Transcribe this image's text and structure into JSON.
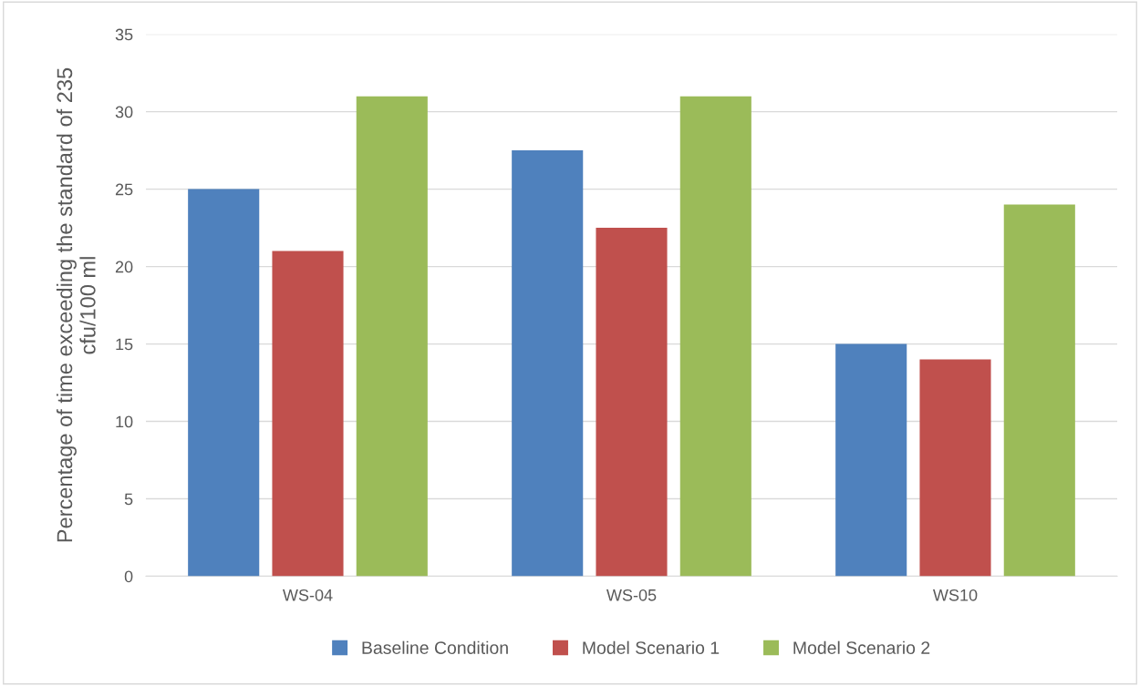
{
  "chart_data": {
    "type": "bar",
    "ylabel": "Percentage of time exceeding the standard of 235\ncfu/100 ml",
    "categories": [
      "WS-04",
      "WS-05",
      "WS10"
    ],
    "series": [
      {
        "name": "Baseline Condition",
        "color": "#4f81bd",
        "values": [
          25,
          27.5,
          15
        ]
      },
      {
        "name": "Model Scenario 1",
        "color": "#c0504d",
        "values": [
          21,
          22.5,
          14
        ]
      },
      {
        "name": "Model Scenario 2",
        "color": "#9bbb59",
        "values": [
          31,
          31,
          24
        ]
      }
    ],
    "ylim": [
      0,
      35
    ],
    "yticks": [
      0,
      5,
      10,
      15,
      20,
      25,
      30,
      35
    ],
    "grid": "y",
    "legend": "bottom"
  }
}
